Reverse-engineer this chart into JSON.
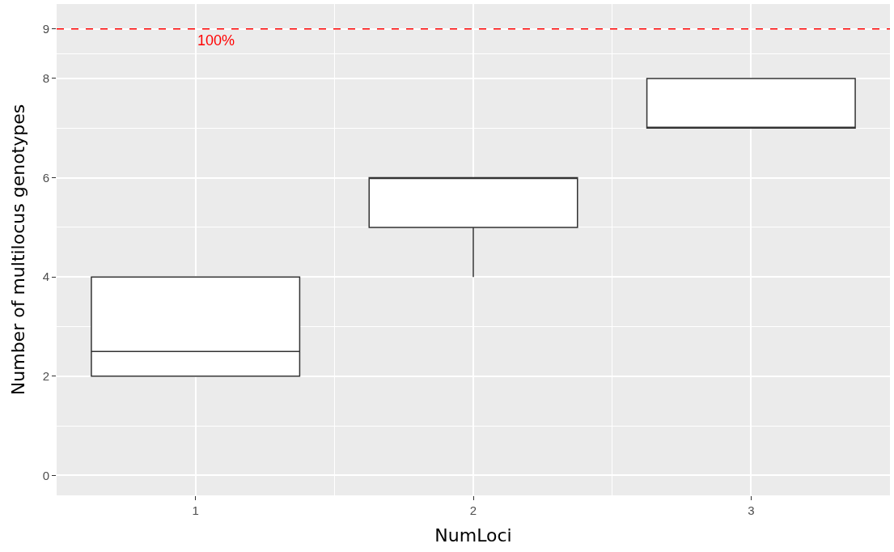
{
  "chart_data": {
    "type": "box",
    "xlabel": "NumLoci",
    "ylabel": "Number of multilocus genotypes",
    "categories": [
      "1",
      "2",
      "3"
    ],
    "boxes": [
      {
        "low": 2,
        "q1": 2,
        "median": 2.5,
        "q3": 4,
        "high": 4
      },
      {
        "low": 4,
        "q1": 5,
        "median": 6,
        "q3": 6,
        "high": 6
      },
      {
        "low": 7,
        "q1": 7,
        "median": 7,
        "q3": 8,
        "high": 8
      }
    ],
    "ylim": [
      -0.4,
      9.5
    ],
    "yticks": [
      0,
      2,
      4,
      6,
      8,
      9
    ],
    "ref_lines": [
      {
        "axis": "y",
        "value": 9,
        "color": "#ff0000",
        "line_style": "dashed"
      }
    ],
    "annotations": [
      "100%"
    ],
    "grid": true
  }
}
